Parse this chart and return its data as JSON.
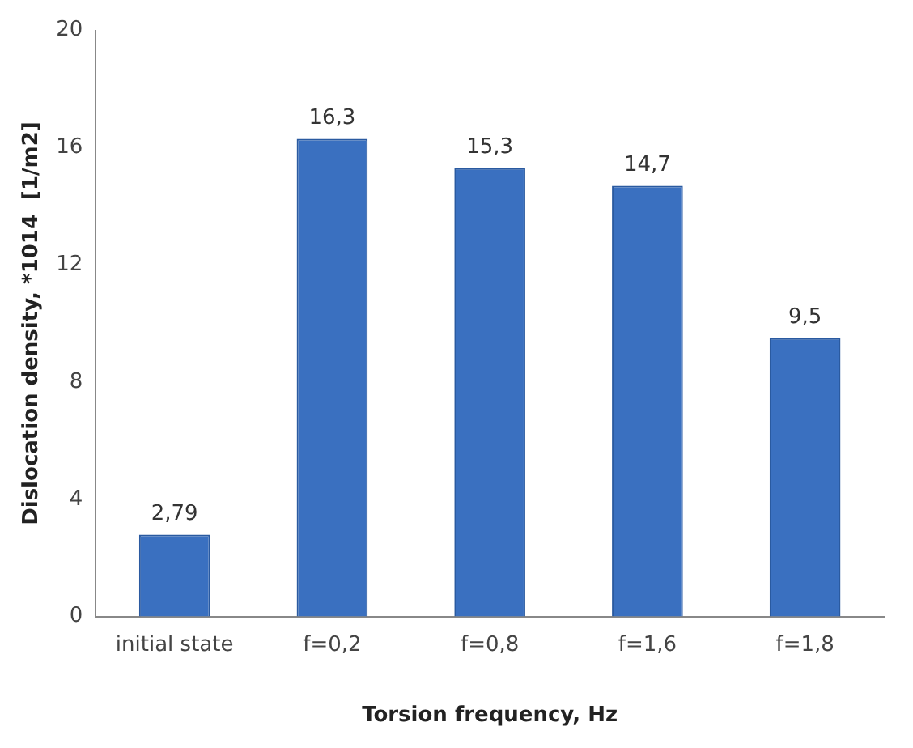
{
  "chart_data": {
    "type": "bar",
    "xlabel": "Torsion frequency, Hz",
    "ylabel": "Dislocation density, *1014  [1/m2]",
    "categories": [
      "initial state",
      "f=0,2",
      "f=0,8",
      "f=1,6",
      "f=1,8"
    ],
    "values": [
      2.79,
      16.3,
      15.3,
      14.7,
      9.5
    ],
    "value_labels": [
      "2,79",
      "16,3",
      "15,3",
      "14,7",
      "9,5"
    ],
    "color": "#3a70c0",
    "ylim": [
      0,
      20
    ],
    "yticks": [
      0,
      4,
      8,
      12,
      16,
      20
    ],
    "grid": false,
    "legend": false
  }
}
